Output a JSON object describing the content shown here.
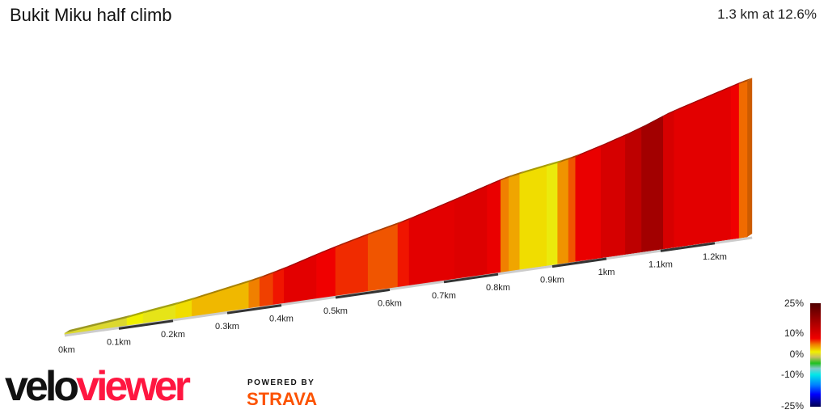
{
  "header": {
    "title": "Bukit Miku half climb",
    "summary": "1.3 km at 12.6%"
  },
  "chart_data": {
    "type": "area",
    "title": "Bukit Miku half climb",
    "xlabel": "",
    "ylabel": "",
    "x_ticks": [
      "0km",
      "0.1km",
      "0.2km",
      "0.3km",
      "0.4km",
      "0.5km",
      "0.6km",
      "0.7km",
      "0.8km",
      "0.9km",
      "1km",
      "1.1km",
      "1.2km"
    ],
    "x_tick_values": [
      0,
      0.1,
      0.2,
      0.3,
      0.4,
      0.5,
      0.6,
      0.7,
      0.8,
      0.9,
      1.0,
      1.1,
      1.2
    ],
    "x_unit": "km",
    "segments": [
      {
        "start": 0,
        "end": 0.115,
        "gradient": 5
      },
      {
        "start": 0.115,
        "end": 0.145,
        "gradient": 7
      },
      {
        "start": 0.145,
        "end": 0.205,
        "gradient": 6
      },
      {
        "start": 0.205,
        "end": 0.235,
        "gradient": 7.5
      },
      {
        "start": 0.235,
        "end": 0.34,
        "gradient": 8.5
      },
      {
        "start": 0.34,
        "end": 0.36,
        "gradient": 10
      },
      {
        "start": 0.36,
        "end": 0.385,
        "gradient": 11.5
      },
      {
        "start": 0.385,
        "end": 0.405,
        "gradient": 12.5
      },
      {
        "start": 0.405,
        "end": 0.465,
        "gradient": 14
      },
      {
        "start": 0.465,
        "end": 0.5,
        "gradient": 13
      },
      {
        "start": 0.5,
        "end": 0.56,
        "gradient": 12
      },
      {
        "start": 0.56,
        "end": 0.615,
        "gradient": 11
      },
      {
        "start": 0.615,
        "end": 0.636,
        "gradient": 12.5
      },
      {
        "start": 0.636,
        "end": 0.72,
        "gradient": 14
      },
      {
        "start": 0.72,
        "end": 0.78,
        "gradient": 14.5
      },
      {
        "start": 0.78,
        "end": 0.805,
        "gradient": 13.5
      },
      {
        "start": 0.805,
        "end": 0.82,
        "gradient": 10
      },
      {
        "start": 0.82,
        "end": 0.84,
        "gradient": 9
      },
      {
        "start": 0.84,
        "end": 0.89,
        "gradient": 7.5
      },
      {
        "start": 0.89,
        "end": 0.91,
        "gradient": 6.5
      },
      {
        "start": 0.91,
        "end": 0.93,
        "gradient": 9.5
      },
      {
        "start": 0.93,
        "end": 0.943,
        "gradient": 11
      },
      {
        "start": 0.943,
        "end": 0.99,
        "gradient": 13.5
      },
      {
        "start": 0.99,
        "end": 1.035,
        "gradient": 15
      },
      {
        "start": 1.035,
        "end": 1.065,
        "gradient": 17
      },
      {
        "start": 1.065,
        "end": 1.105,
        "gradient": 19
      },
      {
        "start": 1.105,
        "end": 1.125,
        "gradient": 15
      },
      {
        "start": 1.125,
        "end": 1.23,
        "gradient": 14
      },
      {
        "start": 1.23,
        "end": 1.245,
        "gradient": 13
      },
      {
        "start": 1.245,
        "end": 1.26,
        "gradient": 10.5
      }
    ],
    "legend": {
      "labels": [
        "25%",
        "10%",
        "0%",
        "-10%",
        "-25%"
      ],
      "values": [
        25,
        10,
        0,
        -10,
        -25
      ],
      "placement": "bottom-right"
    }
  },
  "branding": {
    "logo_velo": "velo",
    "logo_viewer": "viewer",
    "powered_by": "POWERED BY",
    "strava": "STRAVA"
  }
}
